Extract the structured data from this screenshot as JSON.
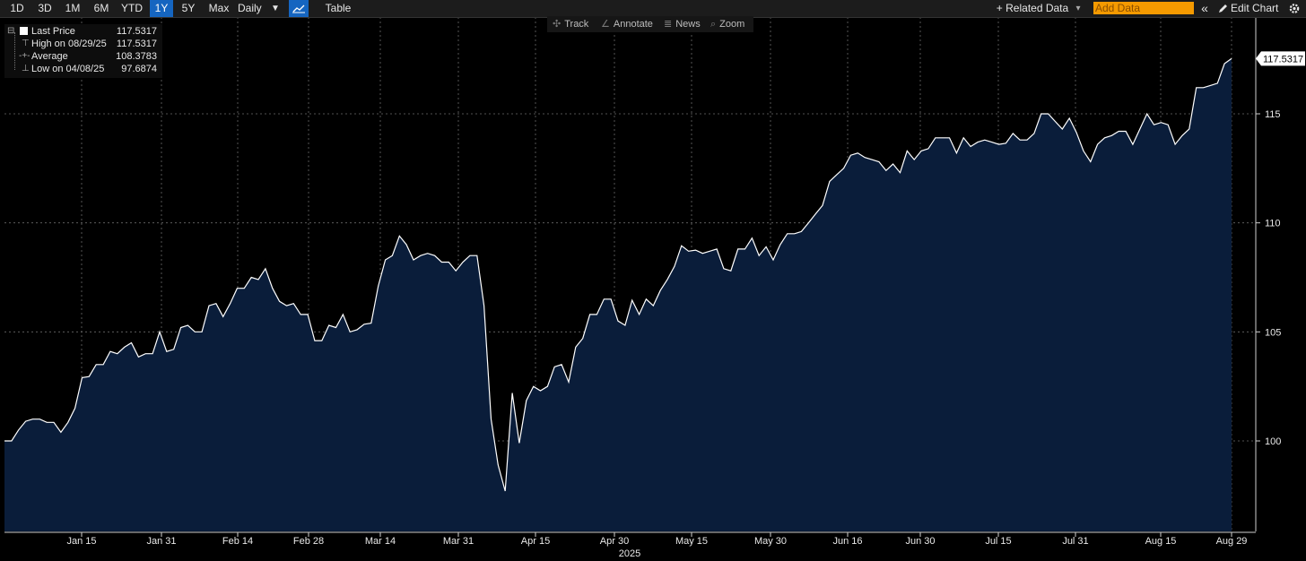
{
  "toolbar": {
    "ranges": [
      "1D",
      "3D",
      "1M",
      "6M",
      "YTD",
      "1Y",
      "5Y",
      "Max"
    ],
    "active_range": "1Y",
    "frequency": "Daily",
    "frequency_arrow": "▼",
    "table_label": "Table",
    "related_data": "+ Related Data",
    "related_arrow": "▾",
    "add_data_placeholder": "Add Data",
    "collapse_glyph": "«",
    "edit_chart": "Edit Chart",
    "edit_icon": "pencil-icon",
    "settings_icon": "gear-icon",
    "accent_color": "#1565c0",
    "add_data_color": "#f59a00"
  },
  "subtools": {
    "track": "Track",
    "annotate": "Annotate",
    "news": "News",
    "zoom": "Zoom"
  },
  "legend": {
    "last_label": "Last Price",
    "last_value": "117.5317",
    "high_label": "High on 08/29/25",
    "high_value": "117.5317",
    "avg_label": "Average",
    "avg_value": "108.3783",
    "low_label": "Low on 04/08/25",
    "low_value": "97.6874"
  },
  "chart_data": {
    "type": "area",
    "x_ticks": [
      "Jan 15",
      "Jan 31",
      "Feb 14",
      "Feb 28",
      "Mar 14",
      "Mar 31",
      "Apr 15",
      "Apr 30",
      "May 15",
      "May 30",
      "Jun 16",
      "Jun 30",
      "Jul 15",
      "Jul 31",
      "Aug 15",
      "Aug 29"
    ],
    "x_year_label": "2025",
    "y_ticks": [
      100,
      105,
      110,
      115
    ],
    "ylim": [
      95.8,
      120.2
    ],
    "last_value_label": "117.5317",
    "grid": true,
    "line_color": "#ffffff",
    "fill_color": "#0a1d3a",
    "series": [
      {
        "values": [
          100.0,
          100.0,
          100.5,
          100.9,
          101.0,
          101.0,
          100.85,
          100.85,
          100.4,
          100.85,
          101.5,
          102.9,
          102.95,
          103.5,
          103.5,
          104.1,
          104.0,
          104.3,
          104.5,
          103.85,
          104.0,
          104.0,
          105.0,
          104.1,
          104.2,
          105.2,
          105.3,
          105.0,
          105.0,
          106.2,
          106.3,
          105.7,
          106.3,
          107.0,
          107.0,
          107.5,
          107.4,
          107.9,
          107.0,
          106.4,
          106.2,
          106.3,
          105.8,
          105.8,
          104.6,
          104.6,
          105.3,
          105.2,
          105.8,
          105.0,
          105.1,
          105.35,
          105.4,
          107.1,
          108.3,
          108.5,
          109.4,
          109.0,
          108.3,
          108.5,
          108.6,
          108.5,
          108.2,
          108.2,
          107.8,
          108.2,
          108.5,
          108.5,
          106.2,
          101.0,
          98.9,
          97.7,
          102.2,
          99.9,
          101.85,
          102.5,
          102.3,
          102.5,
          103.4,
          103.5,
          102.7,
          104.3,
          104.7,
          105.8,
          105.8,
          106.5,
          106.5,
          105.5,
          105.3,
          106.45,
          105.8,
          106.5,
          106.2,
          106.9,
          107.4,
          108.0,
          108.95,
          108.7,
          108.75,
          108.6,
          108.7,
          108.8,
          107.9,
          107.8,
          108.8,
          108.8,
          109.3,
          108.5,
          108.9,
          108.3,
          109.0,
          109.5,
          109.5,
          109.6,
          110.0,
          110.4,
          110.8,
          111.9,
          112.2,
          112.5,
          113.1,
          113.2,
          113.0,
          112.9,
          112.8,
          112.4,
          112.7,
          112.3,
          113.3,
          112.9,
          113.3,
          113.4,
          113.9,
          113.9,
          113.9,
          113.2,
          113.9,
          113.5,
          113.7,
          113.8,
          113.7,
          113.6,
          113.65,
          114.1,
          113.8,
          113.8,
          114.1,
          115.0,
          115.0,
          114.65,
          114.3,
          114.8,
          114.15,
          113.3,
          112.8,
          113.6,
          113.9,
          114.0,
          114.2,
          114.2,
          113.6,
          114.3,
          115.0,
          114.5,
          114.6,
          114.5,
          113.6,
          114.0,
          114.3,
          116.2,
          116.2,
          116.3,
          116.4,
          117.3,
          117.5317
        ]
      }
    ]
  }
}
